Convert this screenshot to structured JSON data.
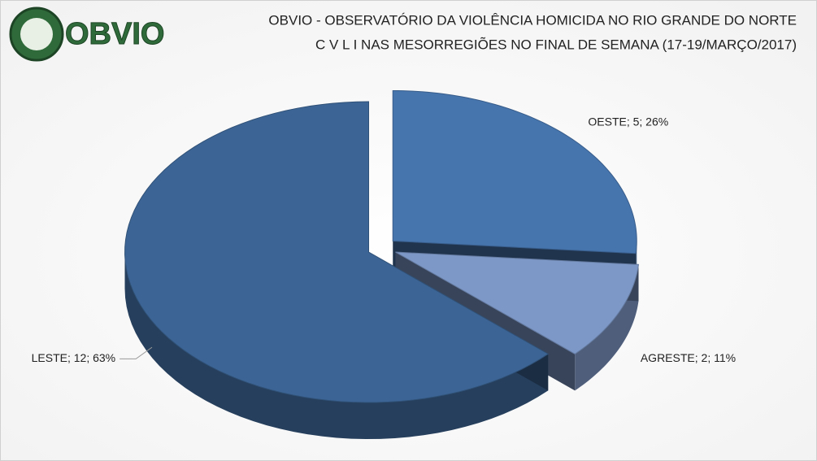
{
  "logo_text": "OBVIO",
  "chart_data": {
    "type": "pie",
    "title": "OBVIO - OBSERVATÓRIO DA VIOLÊNCIA HOMICIDA NO RIO GRANDE DO NORTE",
    "subtitle": "C V L I  NAS MESORREGIÕES NO FINAL DE SEMANA (17-19/MARÇO/2017)",
    "categories": [
      "OESTE",
      "AGRESTE",
      "LESTE"
    ],
    "values": [
      5,
      2,
      12
    ],
    "value_labels": [
      "OESTE; 5; 26%",
      "AGRESTE; 2; 11%",
      "LESTE; 12; 63%"
    ],
    "colors": [
      "#4674ad",
      "#7d98c7",
      "#3c6595"
    ]
  }
}
